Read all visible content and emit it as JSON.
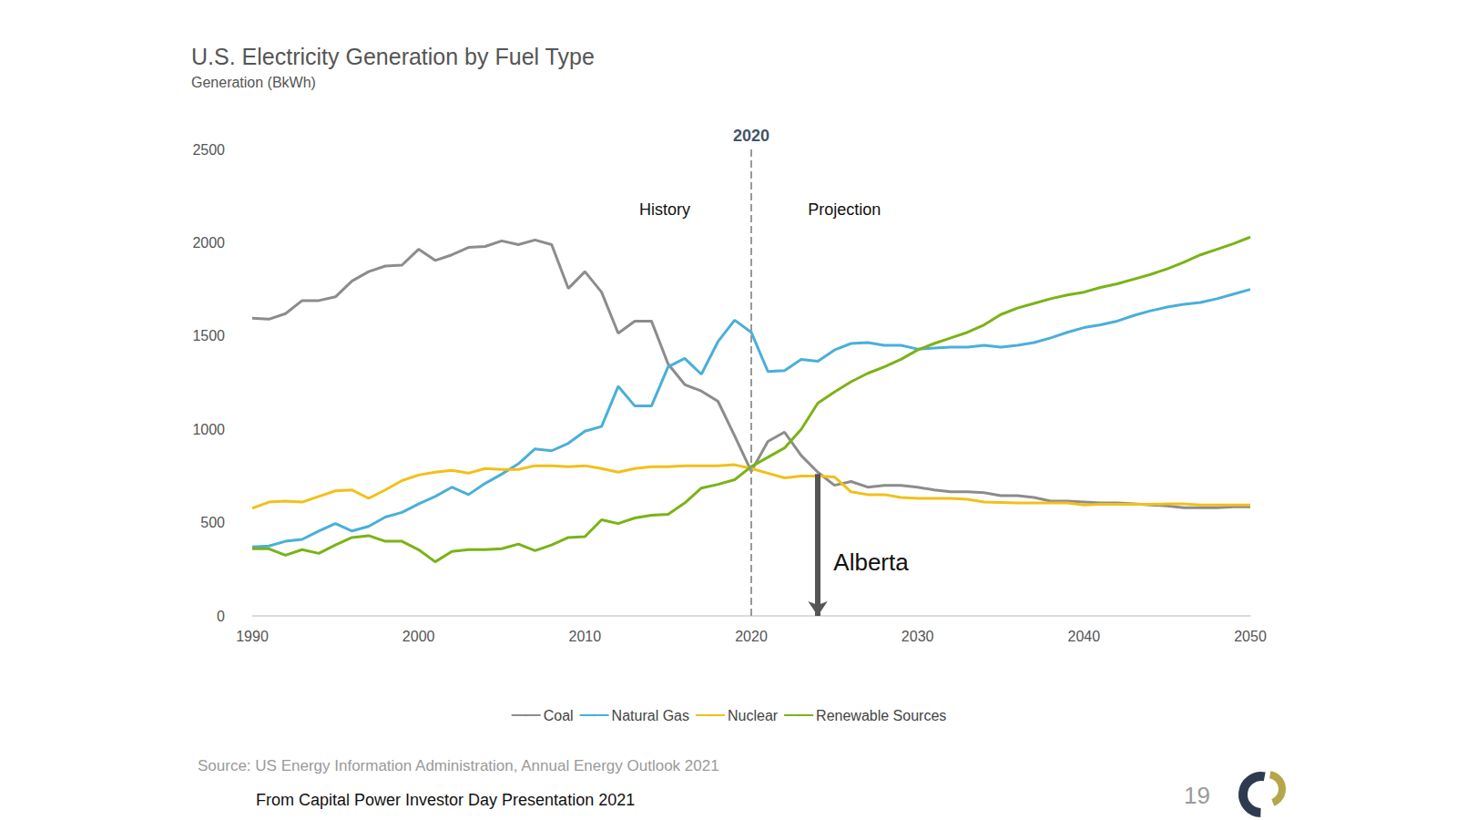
{
  "chart_data": {
    "type": "line",
    "title": "U.S. Electricity Generation by Fuel Type",
    "subtitle": "Generation (BkWh)",
    "x": [
      1990,
      1991,
      1992,
      1993,
      1994,
      1995,
      1996,
      1997,
      1998,
      1999,
      2000,
      2001,
      2002,
      2003,
      2004,
      2005,
      2006,
      2007,
      2008,
      2009,
      2010,
      2011,
      2012,
      2013,
      2014,
      2015,
      2016,
      2017,
      2018,
      2019,
      2020,
      2021,
      2022,
      2023,
      2024,
      2025,
      2026,
      2027,
      2028,
      2029,
      2030,
      2031,
      2032,
      2033,
      2034,
      2035,
      2036,
      2037,
      2038,
      2039,
      2040,
      2041,
      2042,
      2043,
      2044,
      2045,
      2046,
      2047,
      2048,
      2049,
      2050
    ],
    "series": [
      {
        "name": "Coal",
        "color": "#8c8c8c",
        "values": [
          1595,
          1590,
          1620,
          1690,
          1690,
          1710,
          1795,
          1845,
          1875,
          1880,
          1965,
          1905,
          1935,
          1975,
          1980,
          2010,
          1990,
          2015,
          1990,
          1755,
          1845,
          1735,
          1515,
          1580,
          1580,
          1350,
          1240,
          1205,
          1150,
          965,
          775,
          935,
          985,
          860,
          770,
          700,
          720,
          690,
          700,
          700,
          690,
          675,
          665,
          665,
          660,
          645,
          645,
          635,
          615,
          615,
          610,
          605,
          605,
          600,
          595,
          590,
          580,
          580,
          580,
          585,
          585
        ]
      },
      {
        "name": "Natural Gas",
        "color": "#4aafd9",
        "values": [
          370,
          375,
          400,
          410,
          455,
          495,
          455,
          480,
          530,
          555,
          600,
          640,
          690,
          650,
          710,
          760,
          815,
          895,
          885,
          925,
          990,
          1015,
          1230,
          1125,
          1125,
          1335,
          1380,
          1295,
          1470,
          1585,
          1520,
          1310,
          1315,
          1375,
          1365,
          1425,
          1460,
          1465,
          1450,
          1450,
          1430,
          1435,
          1440,
          1440,
          1450,
          1440,
          1450,
          1465,
          1490,
          1520,
          1545,
          1560,
          1580,
          1610,
          1635,
          1655,
          1670,
          1680,
          1700,
          1725,
          1750
        ]
      },
      {
        "name": "Nuclear",
        "color": "#f2c018",
        "values": [
          577,
          610,
          615,
          610,
          640,
          670,
          675,
          630,
          675,
          725,
          755,
          770,
          780,
          765,
          790,
          785,
          785,
          805,
          805,
          800,
          805,
          790,
          770,
          790,
          800,
          800,
          805,
          805,
          805,
          810,
          790,
          765,
          740,
          750,
          750,
          745,
          665,
          650,
          650,
          635,
          630,
          630,
          630,
          625,
          610,
          608,
          605,
          605,
          605,
          605,
          595,
          598,
          598,
          598,
          598,
          600,
          600,
          595,
          595,
          595,
          595
        ]
      },
      {
        "name": "Renewable Sources",
        "color": "#7ab317",
        "values": [
          360,
          360,
          325,
          355,
          335,
          380,
          420,
          430,
          400,
          400,
          355,
          290,
          345,
          355,
          355,
          360,
          385,
          350,
          380,
          420,
          425,
          515,
          495,
          525,
          540,
          545,
          605,
          685,
          705,
          730,
          800,
          850,
          900,
          1000,
          1140,
          1200,
          1255,
          1300,
          1335,
          1375,
          1425,
          1460,
          1490,
          1520,
          1560,
          1615,
          1650,
          1675,
          1700,
          1720,
          1735,
          1760,
          1780,
          1805,
          1830,
          1860,
          1895,
          1935,
          1965,
          1995,
          2030
        ]
      }
    ],
    "xlim": [
      1990,
      2050
    ],
    "xticks": [
      1990,
      2000,
      2010,
      2020,
      2030,
      2040,
      2050
    ],
    "ylim": [
      0,
      2500
    ],
    "yticks": [
      0,
      500,
      1000,
      1500,
      2000,
      2500
    ],
    "grid": false,
    "legend": "bottom",
    "vline": {
      "x": 2020,
      "label": "2020",
      "line_style": "dashed"
    },
    "arrow": {
      "x": 2024,
      "from": 760,
      "to": 0
    },
    "annotations": [
      {
        "text": "History",
        "x": 2014.8,
        "y": 2180
      },
      {
        "text": "Projection",
        "x": 2025.6,
        "y": 2180
      },
      {
        "text": "Alberta",
        "x": 2027.2,
        "y": 290
      }
    ],
    "source": "Source: US Energy Information Administration, Annual Energy Outlook 2021",
    "footer": "From Capital Power Investor Day Presentation 2021",
    "page_number": "19"
  }
}
